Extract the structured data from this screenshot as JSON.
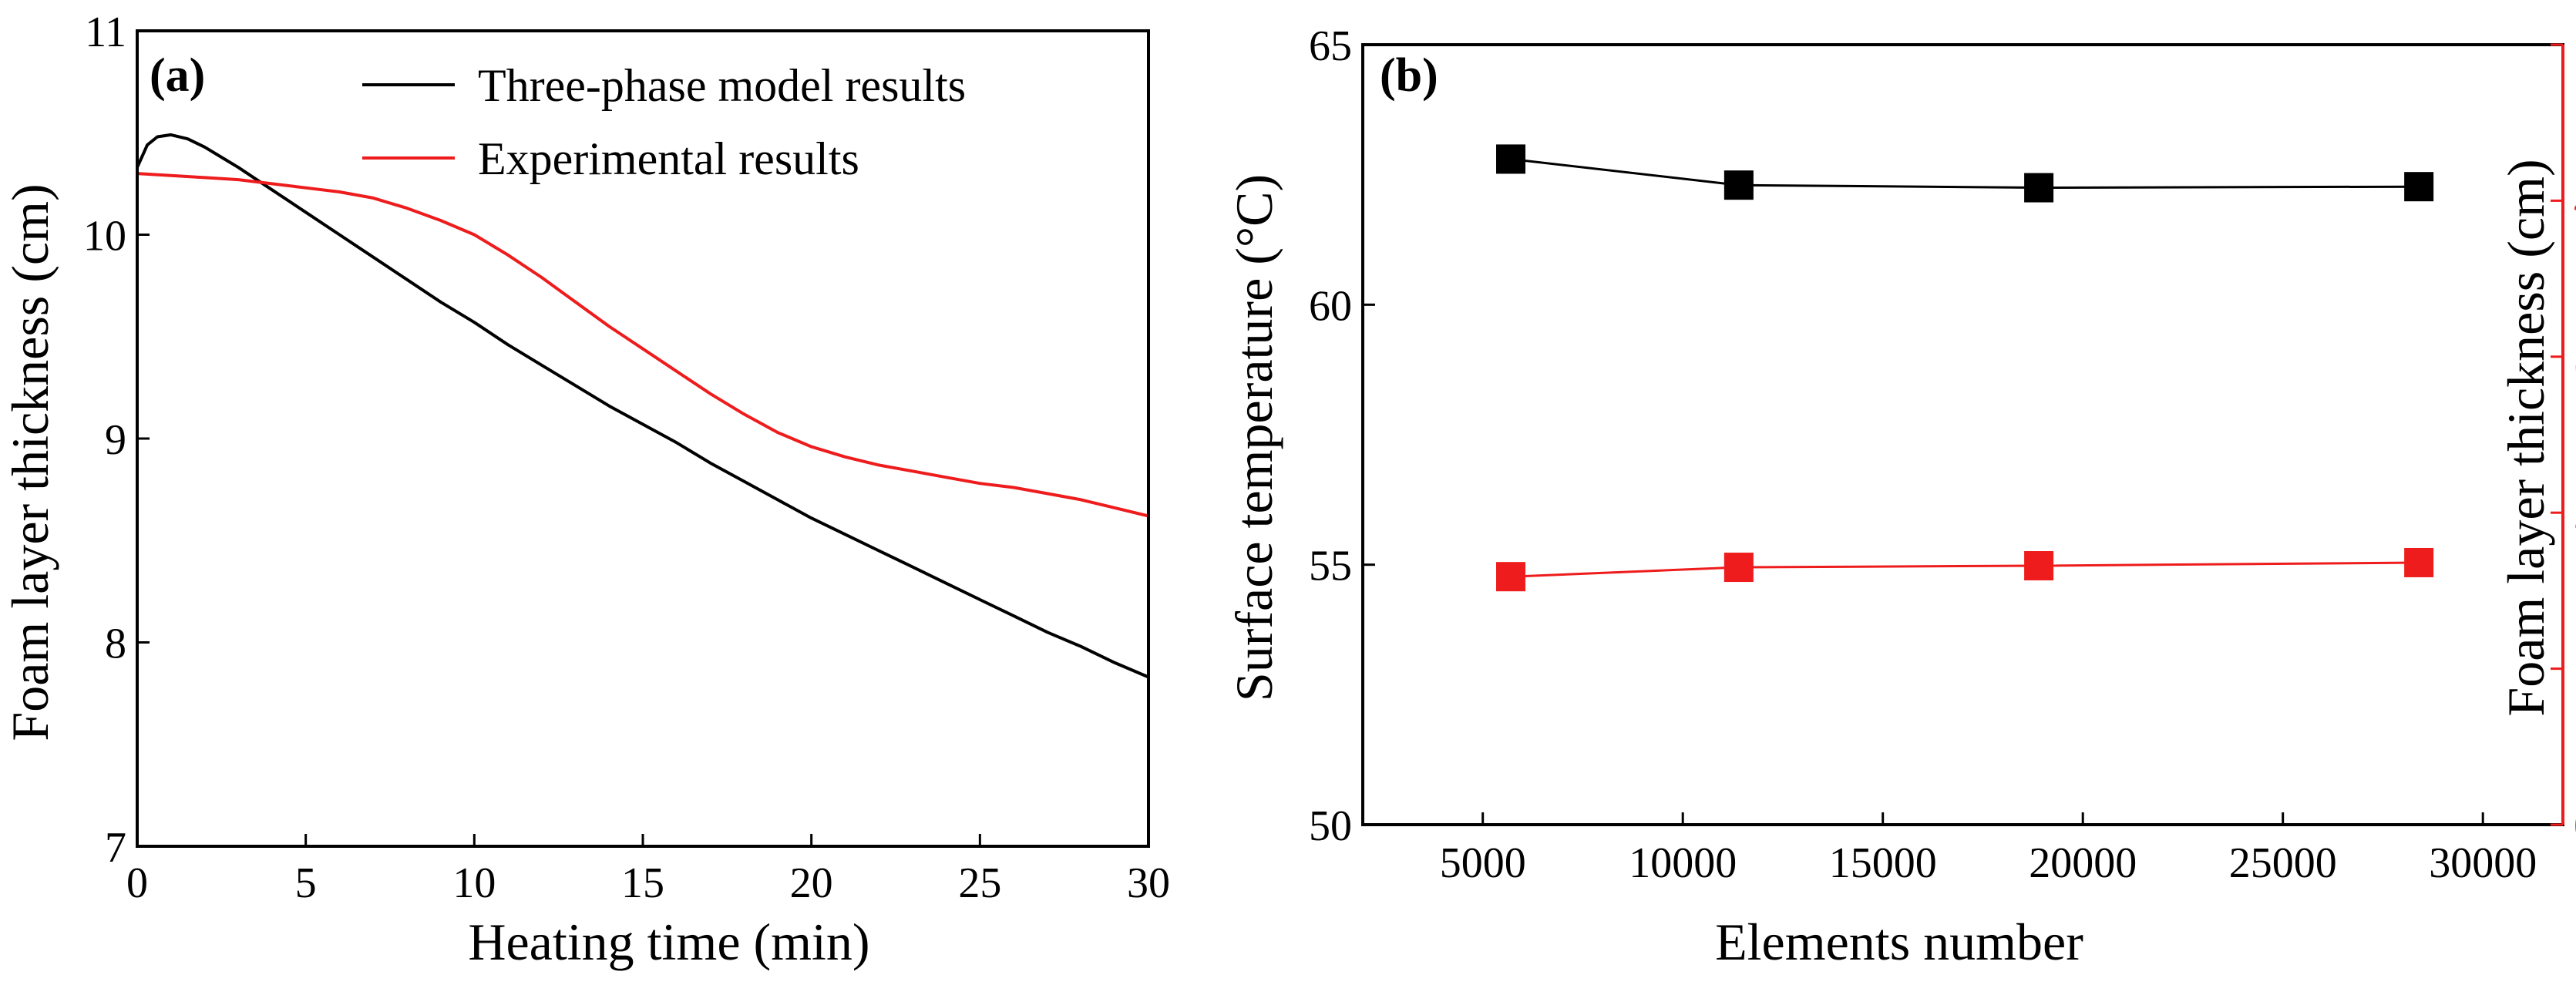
{
  "chart_data": [
    {
      "type": "line",
      "panel_label": "(a)",
      "xlabel": "Heating time (min)",
      "ylabel": "Foam layer thickness (cm)",
      "xlim": [
        0,
        30
      ],
      "ylim": [
        7,
        11
      ],
      "xticks": [
        0,
        5,
        10,
        15,
        20,
        25,
        30
      ],
      "yticks": [
        7,
        8,
        9,
        10,
        11
      ],
      "grid": false,
      "legend_position": "top-right",
      "series": [
        {
          "name": "Three-phase model results",
          "color": "#000000",
          "x": [
            0,
            0.3,
            0.6,
            1,
            1.5,
            2,
            2.5,
            3,
            4,
            5,
            6,
            7,
            8,
            9,
            10,
            11,
            12,
            13,
            14,
            15,
            16,
            17,
            18,
            19,
            20,
            21,
            22,
            23,
            24,
            25,
            26,
            27,
            28,
            29,
            30
          ],
          "y": [
            10.33,
            10.44,
            10.48,
            10.49,
            10.47,
            10.43,
            10.38,
            10.33,
            10.22,
            10.11,
            10.0,
            9.89,
            9.78,
            9.67,
            9.57,
            9.46,
            9.36,
            9.26,
            9.16,
            9.07,
            8.98,
            8.88,
            8.79,
            8.7,
            8.61,
            8.53,
            8.45,
            8.37,
            8.29,
            8.21,
            8.13,
            8.05,
            7.98,
            7.9,
            7.83
          ]
        },
        {
          "name": "Experimental results",
          "color": "#ee1c1c",
          "x": [
            0,
            1,
            2,
            3,
            4,
            5,
            6,
            7,
            8,
            9,
            10,
            11,
            12,
            13,
            14,
            15,
            16,
            17,
            18,
            19,
            20,
            21,
            22,
            23,
            24,
            25,
            26,
            27,
            28,
            29,
            30
          ],
          "y": [
            10.3,
            10.29,
            10.28,
            10.27,
            10.25,
            10.23,
            10.21,
            10.18,
            10.13,
            10.07,
            10.0,
            9.9,
            9.79,
            9.67,
            9.55,
            9.44,
            9.33,
            9.22,
            9.12,
            9.03,
            8.96,
            8.91,
            8.87,
            8.84,
            8.81,
            8.78,
            8.76,
            8.73,
            8.7,
            8.66,
            8.62
          ]
        }
      ]
    },
    {
      "type": "scatter",
      "panel_label": "(b)",
      "xlabel": "Elements number",
      "ylabel": "Surface temperature (°C)",
      "y2label": "Foam layer thickness (cm)",
      "xlim": [
        2000,
        32000
      ],
      "ylim": [
        50,
        65
      ],
      "y2lim": [
        0,
        5
      ],
      "xticks": [
        5000,
        10000,
        15000,
        20000,
        25000,
        30000
      ],
      "yticks": [
        50,
        55,
        60,
        65
      ],
      "y2ticks": [
        0,
        1,
        2,
        3,
        4,
        5
      ],
      "grid": false,
      "series": [
        {
          "name": "",
          "axis": "left",
          "color": "#000000",
          "marker": "square",
          "x": [
            5700,
            11400,
            18900,
            28400
          ],
          "y": [
            62.8,
            62.3,
            62.25,
            62.27
          ]
        },
        {
          "name": "",
          "axis": "right",
          "color": "#ee1c1c",
          "marker": "square",
          "x": [
            5700,
            11400,
            18900,
            28400
          ],
          "y": [
            1.59,
            1.65,
            1.66,
            1.68
          ]
        }
      ]
    }
  ]
}
